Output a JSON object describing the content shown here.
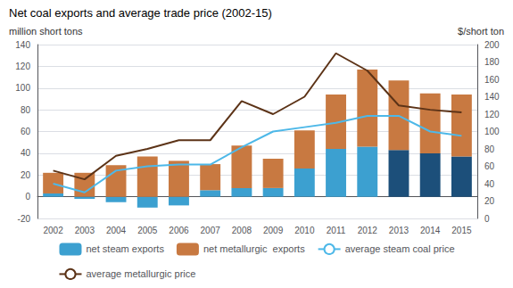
{
  "chart_data": {
    "type": "bar",
    "title": "Net coal exports and average trade price (2002-15)",
    "ylabel": "million short tons",
    "y2label": "$/short ton",
    "categories": [
      "2002",
      "2003",
      "2004",
      "2005",
      "2006",
      "2007",
      "2008",
      "2009",
      "2010",
      "2011",
      "2012",
      "2013",
      "2014",
      "2015"
    ],
    "series": [
      {
        "name": "net steam exports",
        "type": "bar",
        "color": "#3ca0d0",
        "colors": [
          "#3ca0d0",
          "#3ca0d0",
          "#3ca0d0",
          "#3ca0d0",
          "#3ca0d0",
          "#3ca0d0",
          "#3ca0d0",
          "#3ca0d0",
          "#3ca0d0",
          "#3ca0d0",
          "#3ca0d0",
          "#1c4f7a",
          "#1c4f7a",
          "#1c4f7a"
        ],
        "values": [
          3,
          -2,
          -5,
          -10,
          -8,
          6,
          8,
          8,
          26,
          44,
          46,
          43,
          40,
          37
        ]
      },
      {
        "name": "net metallurgic  exports",
        "type": "bar",
        "color": "#c87941",
        "values": [
          19,
          22,
          29,
          37,
          33,
          24,
          39,
          27,
          35,
          50,
          71,
          64,
          55,
          57
        ]
      },
      {
        "name": "average steam coal price",
        "type": "line",
        "axis": "y2",
        "color": "#4db8e8",
        "values": [
          40,
          30,
          55,
          60,
          62,
          62,
          82,
          100,
          105,
          110,
          118,
          118,
          100,
          95
        ]
      },
      {
        "name": "average metallurgic price",
        "type": "line",
        "axis": "y2",
        "color": "#5c3317",
        "values": [
          55,
          45,
          72,
          80,
          90,
          90,
          135,
          120,
          140,
          190,
          170,
          130,
          125,
          122
        ]
      }
    ],
    "stacked": true,
    "ylim": [
      -20,
      140
    ],
    "yticks": [
      -20,
      0,
      20,
      40,
      60,
      80,
      100,
      120,
      140
    ],
    "y2lim": [
      0,
      200
    ],
    "y2ticks": [
      0,
      20,
      40,
      60,
      80,
      100,
      120,
      140,
      160,
      180,
      200
    ],
    "grid": true,
    "legend": "bottom"
  }
}
